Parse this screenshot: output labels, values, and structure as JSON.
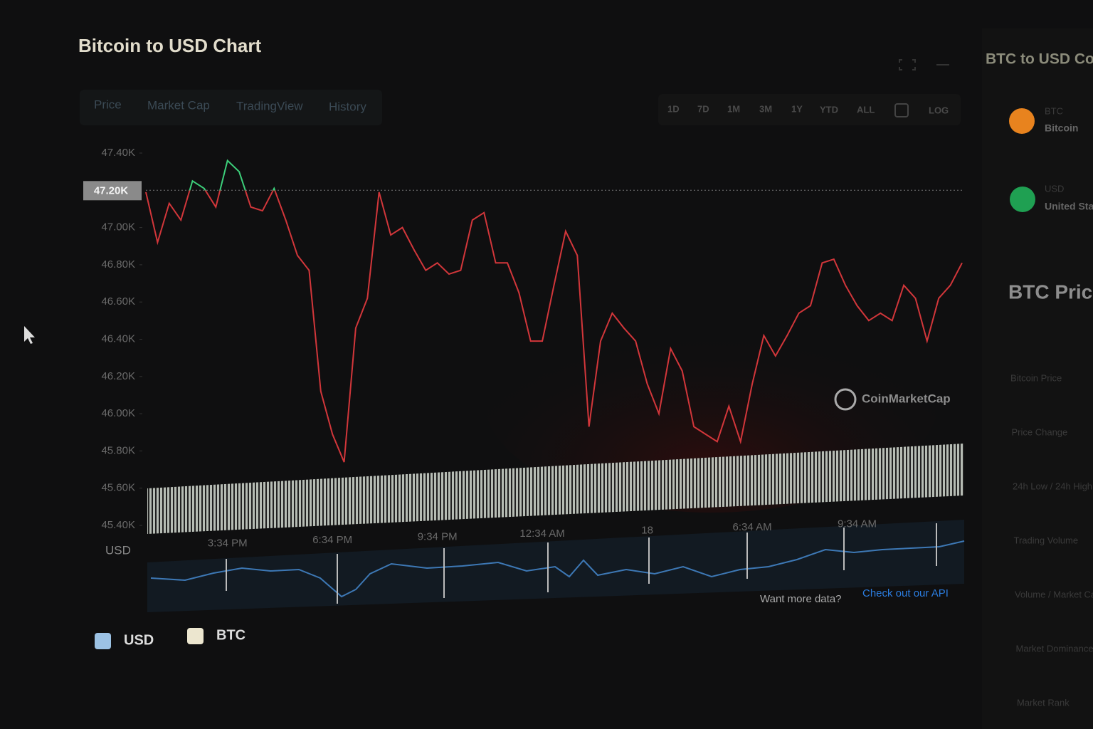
{
  "header": {
    "title": "Bitcoin to USD Chart"
  },
  "tabs": [
    "Price",
    "Market Cap",
    "TradingView",
    "History"
  ],
  "ranges": [
    "1D",
    "7D",
    "1M",
    "3M",
    "1Y",
    "YTD",
    "ALL",
    "LOG"
  ],
  "chart_data": {
    "type": "line",
    "color": "#d2363a",
    "above_color": "#3ccf7a",
    "y_label": "USD",
    "reference": {
      "value": 47.2,
      "label": "47.20K"
    },
    "ylim": [
      45.4,
      47.4
    ],
    "yticks": [
      {
        "value": 47.4,
        "label": "47.40K"
      },
      {
        "value": 47.0,
        "label": "47.00K"
      },
      {
        "value": 46.8,
        "label": "46.80K"
      },
      {
        "value": 46.6,
        "label": "46.60K"
      },
      {
        "value": 46.4,
        "label": "46.40K"
      },
      {
        "value": 46.2,
        "label": "46.20K"
      },
      {
        "value": 46.0,
        "label": "46.00K"
      },
      {
        "value": 45.8,
        "label": "45.80K"
      },
      {
        "value": 45.6,
        "label": "45.60K"
      },
      {
        "value": 45.4,
        "label": "45.40K"
      }
    ],
    "categories": [
      null,
      null,
      null,
      null,
      null,
      null,
      null,
      "3:34 PM",
      null,
      null,
      null,
      null,
      null,
      null,
      null,
      null,
      "6:34 PM",
      null,
      null,
      null,
      null,
      null,
      null,
      null,
      null,
      "9:34 PM",
      null,
      null,
      null,
      null,
      null,
      null,
      null,
      null,
      "12:34 AM",
      null,
      null,
      null,
      null,
      null,
      null,
      null,
      null,
      "18",
      null,
      null,
      null,
      null,
      null,
      null,
      null,
      null,
      "6:34 AM",
      null,
      null,
      null,
      null,
      null,
      null,
      null,
      null,
      "9:34 AM",
      null,
      null,
      null,
      null,
      null,
      null,
      null,
      null,
      null
    ],
    "values": [
      47.19,
      46.92,
      47.13,
      47.04,
      47.25,
      47.21,
      47.11,
      47.36,
      47.3,
      47.11,
      47.09,
      47.21,
      47.04,
      46.85,
      46.77,
      46.12,
      45.89,
      45.74,
      46.46,
      46.62,
      47.19,
      46.96,
      47.0,
      46.88,
      46.77,
      46.81,
      46.75,
      46.77,
      47.04,
      47.08,
      46.81,
      46.81,
      46.65,
      46.39,
      46.39,
      46.69,
      46.98,
      46.85,
      45.93,
      46.39,
      46.54,
      46.46,
      46.39,
      46.16,
      46.0,
      46.35,
      46.23,
      45.93,
      45.89,
      45.85,
      46.04,
      45.85,
      46.16,
      46.42,
      46.31,
      46.42,
      46.54,
      46.58,
      46.81,
      46.83,
      46.69,
      46.58,
      46.5,
      46.54,
      46.5,
      46.69,
      46.62,
      46.39,
      46.62,
      46.69,
      46.81
    ]
  },
  "watermark": "CoinMarketCap",
  "footer": {
    "prompt": "Want more data?",
    "link": "Check out our API"
  },
  "legend": [
    {
      "name": "USD",
      "color": "#9cc2e4"
    },
    {
      "name": "BTC",
      "color": "#ece6cf"
    }
  ],
  "sidebar": {
    "title": "BTC to USD Converter",
    "from_code": "BTC",
    "from_name": "Bitcoin",
    "to_code": "USD",
    "to_name": "United States Dollar",
    "stats_title": "BTC Price Statistics",
    "stats": [
      "Bitcoin Price",
      "Price Change",
      "24h Low / 24h High",
      "Trading Volume",
      "Volume / Market Cap",
      "Market Dominance",
      "Market Rank"
    ]
  }
}
